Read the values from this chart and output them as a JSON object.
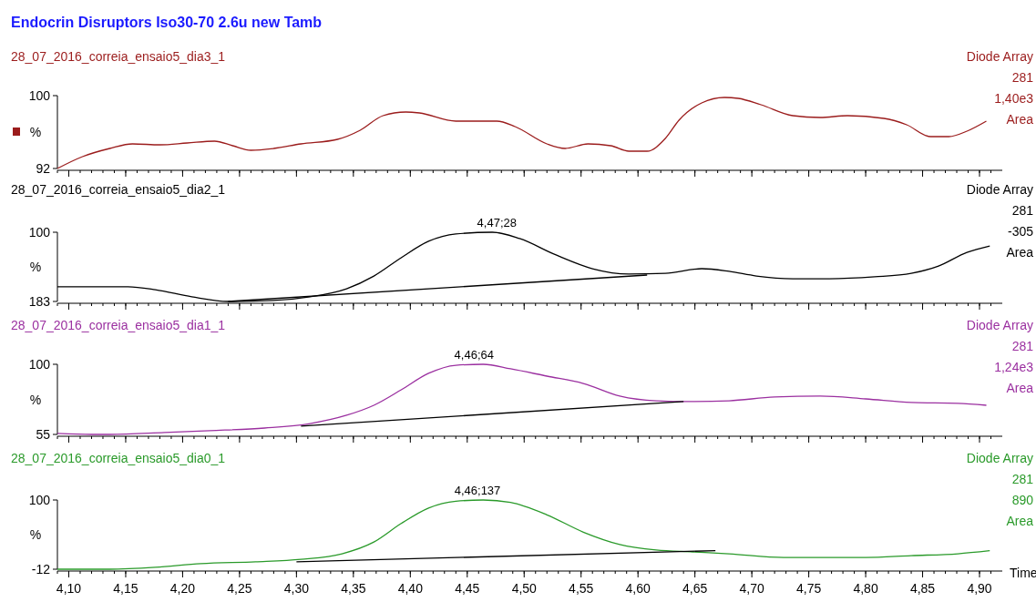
{
  "chart_data": [
    {
      "type": "line",
      "title": "Endocrin Disruptors Iso30-70 2.6u new Tamb",
      "subtitle": "28_07_2016_correia_ensaio5_dia3_1",
      "ylabel": "%",
      "xlim": [
        4.09,
        4.92
      ],
      "xticks": [
        {
          "value": 4.1,
          "label": null
        },
        {
          "value": 4.15,
          "label": null
        },
        {
          "value": 4.2,
          "label": null
        },
        {
          "value": 4.25,
          "label": null
        },
        {
          "value": 4.3,
          "label": null
        },
        {
          "value": 4.35,
          "label": null
        },
        {
          "value": 4.4,
          "label": null
        },
        {
          "value": 4.45,
          "label": null
        },
        {
          "value": 4.5,
          "label": null
        },
        {
          "value": 4.55,
          "label": null
        },
        {
          "value": 4.6,
          "label": null
        },
        {
          "value": 4.65,
          "label": null
        },
        {
          "value": 4.7,
          "label": null
        },
        {
          "value": 4.75,
          "label": null
        },
        {
          "value": 4.8,
          "label": null
        },
        {
          "value": 4.85,
          "label": null
        },
        {
          "value": 4.9,
          "label": null
        }
      ],
      "ylim": [
        92,
        100
      ],
      "yticks": [
        92,
        100
      ],
      "tick_labels": "y",
      "annotations": [
        "Diode Array",
        "281",
        "1,40e3",
        "Area"
      ],
      "series": [
        {
          "color": "#9b1c1c",
          "x": [
            4.09,
            4.112,
            4.136,
            4.156,
            4.18,
            4.204,
            4.228,
            4.244,
            4.26,
            4.28,
            4.304,
            4.336,
            4.356,
            4.376,
            4.396,
            4.408,
            4.44,
            4.476,
            4.492,
            4.52,
            4.536,
            4.556,
            4.576,
            4.592,
            4.608,
            4.624,
            4.636,
            4.656,
            4.676,
            4.688,
            4.708,
            4.736,
            4.76,
            4.784,
            4.816,
            4.836,
            4.857,
            4.873,
            4.889,
            4.906
          ],
          "values": [
            92,
            93.3,
            94.2,
            94.7,
            94.6,
            94.8,
            95,
            94.5,
            94,
            94.2,
            94.7,
            95.2,
            96.2,
            97.8,
            98.2,
            98.1,
            97.2,
            97.2,
            96.6,
            94.7,
            94.2,
            94.7,
            94.5,
            93.9,
            93.9,
            95.3,
            97.3,
            99.2,
            99.8,
            99.7,
            99,
            97.8,
            97.6,
            97.8,
            97.5,
            96.8,
            95.5,
            95.5,
            96.1,
            97.2
          ]
        }
      ]
    },
    {
      "type": "line",
      "subtitle": "28_07_2016_correia_ensaio5_dia2_1",
      "ylabel": "%",
      "xlim": [
        4.09,
        4.92
      ],
      "xticks": [
        {
          "value": 4.1,
          "label": null
        },
        {
          "value": 4.15,
          "label": null
        },
        {
          "value": 4.2,
          "label": null
        },
        {
          "value": 4.25,
          "label": null
        },
        {
          "value": 4.3,
          "label": null
        },
        {
          "value": 4.35,
          "label": null
        },
        {
          "value": 4.4,
          "label": null
        },
        {
          "value": 4.45,
          "label": null
        },
        {
          "value": 4.5,
          "label": null
        },
        {
          "value": 4.55,
          "label": null
        },
        {
          "value": 4.6,
          "label": null
        },
        {
          "value": 4.65,
          "label": null
        },
        {
          "value": 4.7,
          "label": null
        },
        {
          "value": 4.75,
          "label": null
        },
        {
          "value": 4.8,
          "label": null
        },
        {
          "value": 4.85,
          "label": null
        },
        {
          "value": 4.9,
          "label": null
        }
      ],
      "ylim": [
        -183,
        100
      ],
      "yticks": [
        {
          "value": -183,
          "label": "183"
        },
        100
      ],
      "tick_labels": "y",
      "annotations": [
        {
          "text": "4,47;28",
          "x": 4.476,
          "y": 100
        },
        "Diode Array",
        "281",
        "-305",
        "Area"
      ],
      "series": [
        {
          "color": "#000000",
          "x": [
            4.09,
            4.152,
            4.176,
            4.208,
            4.24,
            4.28,
            4.312,
            4.344,
            4.368,
            4.392,
            4.416,
            4.44,
            4.472,
            4.496,
            4.528,
            4.56,
            4.592,
            4.624,
            4.656,
            4.68,
            4.704,
            4.736,
            4.768,
            4.808,
            4.84,
            4.864,
            4.889,
            4.909
          ],
          "values": [
            -123,
            -123,
            -135,
            -164,
            -183,
            -179,
            -164,
            -131,
            -79,
            -4,
            63,
            93,
            100,
            74,
            7,
            -49,
            -71,
            -68,
            -49,
            -60,
            -79,
            -90,
            -90,
            -82,
            -68,
            -38,
            18,
            44
          ]
        },
        {
          "color": "#000000",
          "x": [
            4.24,
            4.608
          ],
          "values": [
            -183,
            -75
          ]
        }
      ]
    },
    {
      "type": "line",
      "subtitle": "28_07_2016_correia_ensaio5_dia1_1",
      "ylabel": "%",
      "xlim": [
        4.09,
        4.92
      ],
      "xticks": [
        {
          "value": 4.1,
          "label": null
        },
        {
          "value": 4.15,
          "label": null
        },
        {
          "value": 4.2,
          "label": null
        },
        {
          "value": 4.25,
          "label": null
        },
        {
          "value": 4.3,
          "label": null
        },
        {
          "value": 4.35,
          "label": null
        },
        {
          "value": 4.4,
          "label": null
        },
        {
          "value": 4.45,
          "label": null
        },
        {
          "value": 4.5,
          "label": null
        },
        {
          "value": 4.55,
          "label": null
        },
        {
          "value": 4.6,
          "label": null
        },
        {
          "value": 4.65,
          "label": null
        },
        {
          "value": 4.7,
          "label": null
        },
        {
          "value": 4.75,
          "label": null
        },
        {
          "value": 4.8,
          "label": null
        },
        {
          "value": 4.85,
          "label": null
        },
        {
          "value": 4.9,
          "label": null
        }
      ],
      "ylim": [
        55,
        100
      ],
      "yticks": [
        55,
        100
      ],
      "tick_labels": "y",
      "annotations": [
        {
          "text": "4,46;64",
          "x": 4.456,
          "y": 100
        },
        "Diode Array",
        "281",
        "1,24e3",
        "Area"
      ],
      "series": [
        {
          "color": "#9b30a0",
          "x": [
            4.09,
            4.12,
            4.136,
            4.184,
            4.224,
            4.272,
            4.312,
            4.344,
            4.368,
            4.392,
            4.416,
            4.44,
            4.464,
            4.488,
            4.52,
            4.552,
            4.584,
            4.616,
            4.648,
            4.68,
            4.72,
            4.76,
            4.8,
            4.84,
            4.881,
            4.906
          ],
          "values": [
            55.6,
            55,
            55,
            56.2,
            57.4,
            59.1,
            62,
            67.3,
            73.7,
            83.6,
            94.2,
            99.4,
            100,
            97.1,
            92.4,
            87.7,
            79.6,
            76.6,
            76.1,
            76.6,
            79,
            79.6,
            77.8,
            75.5,
            74.9,
            73.7
          ]
        },
        {
          "color": "#000000",
          "x": [
            4.304,
            4.64
          ],
          "values": [
            60.3,
            76.1
          ]
        }
      ]
    },
    {
      "type": "line",
      "subtitle": "28_07_2016_correia_ensaio5_dia0_1",
      "ylabel": "%",
      "xlabel": "Time",
      "xlim": [
        4.09,
        4.92
      ],
      "xticks": [
        {
          "value": 4.1,
          "label": "4,10"
        },
        {
          "value": 4.15,
          "label": "4,15"
        },
        {
          "value": 4.2,
          "label": "4,20"
        },
        {
          "value": 4.25,
          "label": "4,25"
        },
        {
          "value": 4.3,
          "label": "4,30"
        },
        {
          "value": 4.35,
          "label": "4,35"
        },
        {
          "value": 4.4,
          "label": "4,40"
        },
        {
          "value": 4.45,
          "label": "4,45"
        },
        {
          "value": 4.5,
          "label": "4,50"
        },
        {
          "value": 4.55,
          "label": "4,55"
        },
        {
          "value": 4.6,
          "label": "4,60"
        },
        {
          "value": 4.65,
          "label": "4,65"
        },
        {
          "value": 4.7,
          "label": "4,70"
        },
        {
          "value": 4.75,
          "label": "4,75"
        },
        {
          "value": 4.8,
          "label": "4,80"
        },
        {
          "value": 4.85,
          "label": "4,85"
        },
        {
          "value": 4.9,
          "label": "4,90"
        }
      ],
      "ylim": [
        -12,
        100
      ],
      "yticks": [
        -12,
        100
      ],
      "annotations": [
        {
          "text": "4,46;137",
          "x": 4.459,
          "y": 100
        },
        "Diode Array",
        "281",
        "890",
        "Area"
      ],
      "series": [
        {
          "color": "#2a9a2a",
          "x": [
            4.09,
            4.136,
            4.176,
            4.216,
            4.264,
            4.304,
            4.34,
            4.368,
            4.392,
            4.416,
            4.44,
            4.464,
            4.488,
            4.52,
            4.552,
            4.584,
            4.616,
            4.648,
            4.68,
            4.728,
            4.8,
            4.84,
            4.881,
            4.909
          ],
          "values": [
            -12,
            -12,
            -9,
            -3,
            0,
            4,
            13,
            32,
            62,
            87,
            98,
            100,
            96,
            76,
            48,
            28,
            19,
            16,
            13,
            7,
            7,
            10,
            13,
            18
          ]
        },
        {
          "color": "#000000",
          "x": [
            4.3,
            4.668
          ],
          "values": [
            0,
            18
          ]
        }
      ]
    }
  ]
}
